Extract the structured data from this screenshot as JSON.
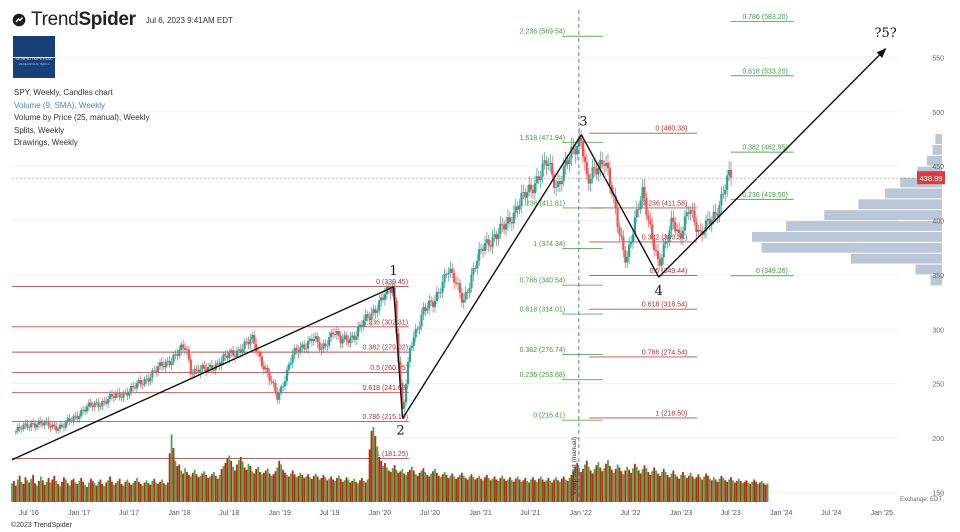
{
  "header": {
    "brand_light": "Trend",
    "brand_bold": "Spider",
    "timestamp": "Jul 6, 2023 9:41AM EDT",
    "avatar_text": "SENPAI IMPERIAL",
    "avatar_sub": "PEREGRINUS TERRA"
  },
  "legend": {
    "title": "SPY, Weekly, Candles chart",
    "volume": "Volume (9, SMA), Weekly",
    "vbp": "Volume by Price (25, manual), Weekly",
    "splits": "Splits, Weekly",
    "drawings": "Drawings, Weekly"
  },
  "footer": {
    "copyright": "©2023 TrendSpider"
  },
  "chart_data": {
    "type": "candlestick",
    "symbol": "SPY",
    "interval": "Weekly",
    "x_ticks": [
      "Jul '16",
      "Jan '17",
      "Jul '17",
      "Jan '18",
      "Jul '18",
      "Jan '19",
      "Jul '19",
      "Jan '20",
      "Jul '20",
      "Jan '21",
      "Jul '21",
      "Jan '22",
      "Jul '22",
      "Jan '23",
      "Jul '23",
      "Jan '24",
      "Jul '24",
      "Jan '25"
    ],
    "x_range": [
      "2016-05-01",
      "2025-03-01"
    ],
    "y_ticks": [
      150,
      200,
      250,
      300,
      350,
      400,
      450,
      500,
      550
    ],
    "y_range": [
      143,
      590
    ],
    "current_price": {
      "value": 438.99,
      "label": "438.99",
      "color": "#e03a3a"
    },
    "exchange_label": "Exchange: EDT",
    "close_path": [
      [
        "2016-05-15",
        206
      ],
      [
        "2016-07-15",
        214
      ],
      [
        "2016-11-01",
        210
      ],
      [
        "2017-01-15",
        226
      ],
      [
        "2017-07-15",
        245
      ],
      [
        "2018-01-25",
        284
      ],
      [
        "2018-02-10",
        263
      ],
      [
        "2018-04-05",
        262
      ],
      [
        "2018-07-15",
        278
      ],
      [
        "2018-09-25",
        290
      ],
      [
        "2018-12-24",
        237
      ],
      [
        "2019-02-15",
        275
      ],
      [
        "2019-05-01",
        293
      ],
      [
        "2019-06-01",
        280
      ],
      [
        "2019-07-15",
        300
      ],
      [
        "2019-08-10",
        288
      ],
      [
        "2019-10-01",
        295
      ],
      [
        "2020-01-15",
        330
      ],
      [
        "2020-02-19",
        339
      ],
      [
        "2020-03-23",
        222
      ],
      [
        "2020-04-20",
        282
      ],
      [
        "2020-06-08",
        320
      ],
      [
        "2020-07-15",
        322
      ],
      [
        "2020-09-02",
        357
      ],
      [
        "2020-10-30",
        327
      ],
      [
        "2021-01-15",
        380
      ],
      [
        "2021-03-01",
        385
      ],
      [
        "2021-07-15",
        435
      ],
      [
        "2021-09-02",
        453
      ],
      [
        "2021-10-05",
        432
      ],
      [
        "2022-01-03",
        479
      ],
      [
        "2022-01-25",
        433
      ],
      [
        "2022-03-29",
        460
      ],
      [
        "2022-05-20",
        390
      ],
      [
        "2022-06-16",
        365
      ],
      [
        "2022-08-16",
        428
      ],
      [
        "2022-10-12",
        355
      ],
      [
        "2022-12-01",
        405
      ],
      [
        "2022-12-28",
        380
      ],
      [
        "2023-02-02",
        415
      ],
      [
        "2023-03-13",
        385
      ],
      [
        "2023-05-15",
        412
      ],
      [
        "2023-06-30",
        443
      ],
      [
        "2023-07-05",
        439
      ]
    ],
    "volume_start": "2016-05-01",
    "volume_series": [
      0.25,
      0.28,
      0.22,
      0.3,
      0.35,
      0.27,
      0.24,
      0.33,
      0.29,
      0.26,
      0.31,
      0.36,
      0.25,
      0.22,
      0.28,
      0.34,
      0.29,
      0.23,
      0.27,
      0.32,
      0.26,
      0.3,
      0.35,
      0.28,
      0.24,
      0.21,
      0.27,
      0.33,
      0.3,
      0.25,
      0.22,
      0.29,
      0.31,
      0.26,
      0.24,
      0.28,
      0.32,
      0.27,
      0.23,
      0.2,
      0.26,
      0.31,
      0.28,
      0.25,
      0.22,
      0.27,
      0.3,
      0.24,
      0.21,
      0.26,
      0.29,
      0.34,
      0.27,
      0.23,
      0.25,
      0.28,
      0.31,
      0.24,
      0.22,
      0.27,
      0.3,
      0.26,
      0.23,
      0.25,
      0.28,
      0.32,
      0.27,
      0.24,
      0.22,
      0.26,
      0.29,
      0.25,
      0.23,
      0.28,
      0.31,
      0.26,
      0.24,
      0.27,
      0.3,
      0.25,
      0.23,
      0.26,
      0.65,
      0.9,
      0.72,
      0.55,
      0.48,
      0.5,
      0.42,
      0.38,
      0.45,
      0.4,
      0.36,
      0.34,
      0.39,
      0.43,
      0.37,
      0.33,
      0.35,
      0.38,
      0.41,
      0.36,
      0.32,
      0.34,
      0.37,
      0.4,
      0.35,
      0.31,
      0.36,
      0.44,
      0.48,
      0.52,
      0.58,
      0.62,
      0.55,
      0.47,
      0.42,
      0.5,
      0.56,
      0.6,
      0.54,
      0.46,
      0.43,
      0.51,
      0.48,
      0.41,
      0.38,
      0.44,
      0.47,
      0.4,
      0.37,
      0.39,
      0.42,
      0.45,
      0.38,
      0.35,
      0.37,
      0.41,
      0.46,
      0.55,
      0.5,
      0.43,
      0.39,
      0.36,
      0.34,
      0.38,
      0.42,
      0.37,
      0.33,
      0.35,
      0.39,
      0.36,
      0.32,
      0.34,
      0.37,
      0.33,
      0.31,
      0.35,
      0.38,
      0.34,
      0.3,
      0.32,
      0.36,
      0.33,
      0.29,
      0.31,
      0.34,
      0.3,
      0.28,
      0.32,
      0.35,
      0.31,
      0.27,
      0.29,
      0.33,
      0.3,
      0.26,
      0.28,
      0.31,
      0.27,
      0.25,
      0.29,
      0.32,
      0.28,
      0.26,
      0.3,
      0.7,
      0.95,
      1.0,
      0.88,
      0.74,
      0.6,
      0.55,
      0.48,
      0.52,
      0.46,
      0.42,
      0.4,
      0.45,
      0.49,
      0.43,
      0.39,
      0.41,
      0.44,
      0.38,
      0.36,
      0.4,
      0.43,
      0.47,
      0.42,
      0.37,
      0.35,
      0.39,
      0.42,
      0.45,
      0.4,
      0.36,
      0.34,
      0.38,
      0.41,
      0.44,
      0.39,
      0.35,
      0.33,
      0.37,
      0.4,
      0.36,
      0.32,
      0.35,
      0.38,
      0.34,
      0.31,
      0.33,
      0.36,
      0.39,
      0.35,
      0.32,
      0.3,
      0.34,
      0.37,
      0.33,
      0.3,
      0.32,
      0.35,
      0.31,
      0.29,
      0.33,
      0.36,
      0.32,
      0.29,
      0.31,
      0.34,
      0.3,
      0.28,
      0.32,
      0.35,
      0.31,
      0.28,
      0.3,
      0.33,
      0.29,
      0.27,
      0.31,
      0.34,
      0.3,
      0.27,
      0.29,
      0.32,
      0.28,
      0.26,
      0.3,
      0.33,
      0.29,
      0.27,
      0.31,
      0.34,
      0.3,
      0.27,
      0.29,
      0.32,
      0.28,
      0.26,
      0.3,
      0.33,
      0.29,
      0.27,
      0.31,
      0.34,
      0.3,
      0.28,
      0.32,
      0.36,
      0.42,
      0.48,
      0.52,
      0.45,
      0.4,
      0.44,
      0.5,
      0.55,
      0.47,
      0.42,
      0.38,
      0.44,
      0.49,
      0.53,
      0.46,
      0.41,
      0.45,
      0.51,
      0.56,
      0.48,
      0.43,
      0.39,
      0.44,
      0.5,
      0.46,
      0.41,
      0.37,
      0.42,
      0.47,
      0.43,
      0.39,
      0.45,
      0.51,
      0.47,
      0.42,
      0.38,
      0.44,
      0.49,
      0.45,
      0.4,
      0.36,
      0.41,
      0.46,
      0.42,
      0.38,
      0.35,
      0.4,
      0.44,
      0.4,
      0.36,
      0.33,
      0.38,
      0.42,
      0.37,
      0.34,
      0.31,
      0.36,
      0.4,
      0.36,
      0.32,
      0.35,
      0.39,
      0.34,
      0.31,
      0.33,
      0.37,
      0.33,
      0.3,
      0.34,
      0.38,
      0.35,
      0.31,
      0.29,
      0.33,
      0.3,
      0.27,
      0.31,
      0.35,
      0.32,
      0.29,
      0.27,
      0.3,
      0.33,
      0.29,
      0.26,
      0.28,
      0.31,
      0.28,
      0.25,
      0.27,
      0.29,
      0.26,
      0.24,
      0.27,
      0.3,
      0.27,
      0.24,
      0.26,
      0.28,
      0.25,
      0.23,
      0.25
    ],
    "volume_by_price": {
      "bin_size": 10,
      "bins": [
        [
          345,
          0.06
        ],
        [
          355,
          0.14
        ],
        [
          365,
          0.48
        ],
        [
          375,
          0.95
        ],
        [
          385,
          1.0
        ],
        [
          395,
          0.82
        ],
        [
          405,
          0.62
        ],
        [
          415,
          0.44
        ],
        [
          425,
          0.3
        ],
        [
          435,
          0.22
        ],
        [
          445,
          0.13
        ],
        [
          455,
          0.08
        ],
        [
          465,
          0.05
        ],
        [
          475,
          0.035
        ]
      ]
    },
    "fib_levels": [
      {
        "group": "A",
        "ratio": "0",
        "value": 339.45,
        "label": "0 (339.45)",
        "color": "#b03030"
      },
      {
        "group": "A",
        "ratio": "0.236",
        "value": 302.31,
        "label": "0.236 (302.31)",
        "color": "#b03030"
      },
      {
        "group": "A",
        "ratio": "0.382",
        "value": 279.02,
        "label": "0.382 (279.02)",
        "color": "#b03030"
      },
      {
        "group": "A",
        "ratio": "0.5",
        "value": 260.35,
        "label": "0.5 (260.35)",
        "color": "#b03030"
      },
      {
        "group": "A",
        "ratio": "0.618",
        "value": 241.68,
        "label": "0.618 (241.68)",
        "color": "#b03030"
      },
      {
        "group": "A",
        "ratio": "0.786",
        "value": 215.1,
        "label": "0.786 (215.10)",
        "color": "#b03030"
      },
      {
        "group": "A",
        "ratio": "1",
        "value": 181.25,
        "label": "1 (181.25)",
        "color": "#b03030"
      },
      {
        "group": "B",
        "ratio": "2.236",
        "value": 569.54,
        "label": "2.236 (569.54)",
        "color": "#3f9a3f"
      },
      {
        "group": "B",
        "ratio": "1.618",
        "value": 471.94,
        "label": "1.618 (471.94)",
        "color": "#3f9a3f"
      },
      {
        "group": "B",
        "ratio": "1.236",
        "value": 411.61,
        "label": "1.236 (411.61)",
        "color": "#3f9a3f"
      },
      {
        "group": "B",
        "ratio": "1",
        "value": 374.34,
        "label": "1 (374.34)",
        "color": "#3f9a3f"
      },
      {
        "group": "B",
        "ratio": "0.786",
        "value": 340.54,
        "label": "0.786 (340.54)",
        "color": "#3f9a3f"
      },
      {
        "group": "B",
        "ratio": "0.618",
        "value": 314.01,
        "label": "0.618 (314.01)",
        "color": "#3f9a3f"
      },
      {
        "group": "B",
        "ratio": "0.382",
        "value": 276.74,
        "label": "0.382 (276.74)",
        "color": "#3f9a3f"
      },
      {
        "group": "B",
        "ratio": "0.236",
        "value": 253.68,
        "label": "0.236 (253.68)",
        "color": "#3f9a3f"
      },
      {
        "group": "B",
        "ratio": "0",
        "value": 216.41,
        "label": "0 (216.41)",
        "color": "#3f9a3f"
      },
      {
        "group": "C",
        "ratio": "0",
        "value": 480.38,
        "label": "0 (480.38)",
        "color": "#b03030"
      },
      {
        "group": "C",
        "ratio": "0.236",
        "value": 411.58,
        "label": "0.236 (411.58)",
        "color": "#b03030"
      },
      {
        "group": "C",
        "ratio": "0.382",
        "value": 380.34,
        "label": "0.382 (380.34)",
        "color": "#b03030"
      },
      {
        "group": "C",
        "ratio": "0.5",
        "value": 349.44,
        "label": "0.5 (349.44)",
        "color": "#b03030"
      },
      {
        "group": "C",
        "ratio": "0.618",
        "value": 318.54,
        "label": "0.618 (318.54)",
        "color": "#b03030"
      },
      {
        "group": "C",
        "ratio": "0.786",
        "value": 274.54,
        "label": "0.786 (274.54)",
        "color": "#b03030"
      },
      {
        "group": "C",
        "ratio": "1",
        "value": 218.5,
        "label": "1 (218.50)",
        "color": "#b03030"
      },
      {
        "group": "D",
        "ratio": "0.786",
        "value": 583.2,
        "label": "0.786 (583.20)",
        "color": "#3f9a3f"
      },
      {
        "group": "D",
        "ratio": "0.618",
        "value": 533.2,
        "label": "0.618 (533.20)",
        "color": "#3f9a3f"
      },
      {
        "group": "D",
        "ratio": "0.382",
        "value": 462.95,
        "label": "0.382 (462.95)",
        "color": "#3f9a3f"
      },
      {
        "group": "D",
        "ratio": "0.236",
        "value": 419.5,
        "label": "0.236 (419.50)",
        "color": "#3f9a3f"
      },
      {
        "group": "D",
        "ratio": "0",
        "value": 349.26,
        "label": "0 (349.26)",
        "color": "#3f9a3f"
      }
    ],
    "wave_points": [
      {
        "label": "1",
        "date": "2020-02-19",
        "price": 339
      },
      {
        "label": "2",
        "date": "2020-03-23",
        "price": 218
      },
      {
        "label": "3",
        "date": "2022-01-03",
        "price": 479
      },
      {
        "label": "4",
        "date": "2022-10-12",
        "price": 348
      },
      {
        "label": "?5?",
        "date": "2025-01-15",
        "price": 558
      }
    ],
    "trend_lines": [
      {
        "from": [
          "2016-05-01",
          180
        ],
        "to": [
          "2020-02-19",
          339
        ]
      },
      {
        "from": [
          "2020-02-19",
          339
        ],
        "to": [
          "2020-03-23",
          218
        ]
      },
      {
        "from": [
          "2020-03-23",
          218
        ],
        "to": [
          "2022-01-03",
          479
        ]
      },
      {
        "from": [
          "2022-01-03",
          479
        ],
        "to": [
          "2022-10-12",
          348
        ]
      },
      {
        "from": [
          "2022-10-12",
          348
        ],
        "to": [
          "2025-01-15",
          558
        ],
        "arrow": true
      }
    ],
    "vertical_marker": {
      "date": "2021-12-25",
      "label": "Vwap start (manual)"
    },
    "colors": {
      "up": "#26a69a",
      "down": "#ef5350",
      "vol_up": "#3fae4a",
      "vol_down": "#b92a10",
      "vbp": "#a3b4c8",
      "grid": "#f0f0f0"
    }
  }
}
